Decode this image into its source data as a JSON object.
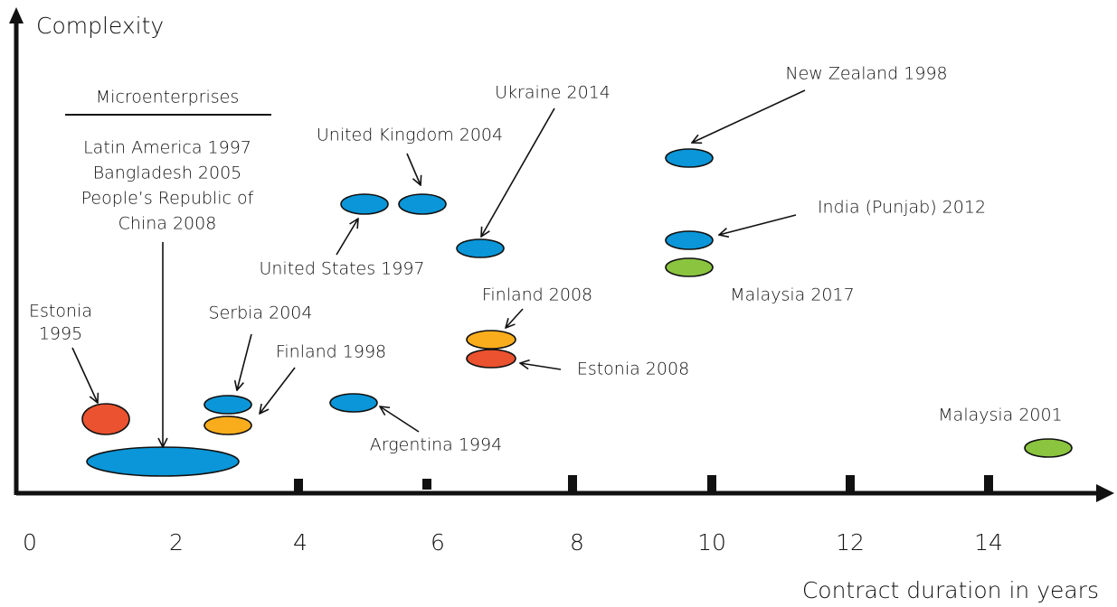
{
  "axes": {
    "y_label": "Complexity",
    "x_label": "Contract duration in years",
    "x_ticks": [
      "0",
      "2",
      "4",
      "6",
      "8",
      "10",
      "12",
      "14"
    ]
  },
  "groups": [
    {
      "title": "Microenterprises",
      "lines": [
        "Latin America 1997",
        "Bangladesh 2005",
        "People’s Republic of",
        "China 2008"
      ]
    }
  ],
  "labels": [
    {
      "lines": [
        "Estonia",
        "1995"
      ]
    },
    {
      "lines": [
        "Serbia 2004"
      ]
    },
    {
      "lines": [
        "Finland 1998"
      ]
    },
    {
      "lines": [
        "United Kingdom 2004"
      ]
    },
    {
      "lines": [
        "United States 1997"
      ]
    },
    {
      "lines": [
        "Argentina 1994"
      ]
    },
    {
      "lines": [
        "Ukraine 2014"
      ]
    },
    {
      "lines": [
        "Finland 2008"
      ]
    },
    {
      "lines": [
        "Estonia 2008"
      ]
    },
    {
      "lines": [
        "New Zealand 1998"
      ]
    },
    {
      "lines": [
        "India (Punjab) 2012"
      ]
    },
    {
      "lines": [
        "Malaysia 2017"
      ]
    },
    {
      "lines": [
        "Malaysia 2001"
      ]
    }
  ]
}
